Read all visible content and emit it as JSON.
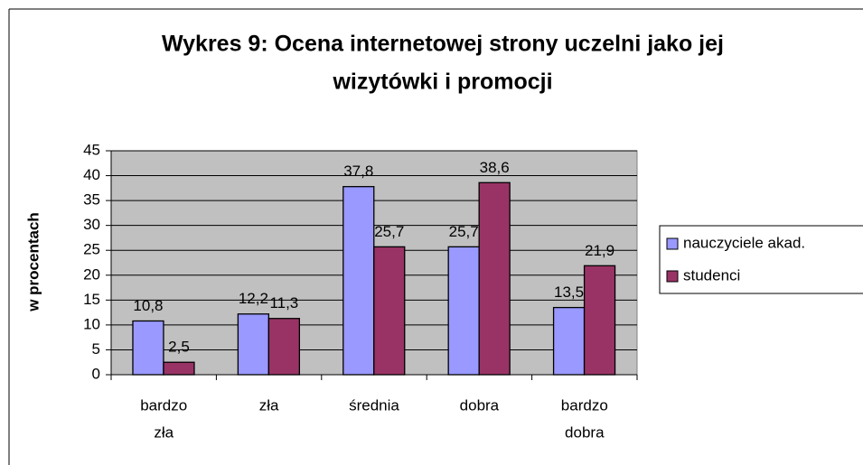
{
  "chart_data": {
    "type": "bar",
    "title": [
      "Wykres 9: Ocena internetowej strony uczelni jako jej",
      "wizytówki i  promocji"
    ],
    "y_label": "w procentach",
    "categories": [
      [
        "bardzo",
        "zła"
      ],
      [
        "zła"
      ],
      [
        "średnia"
      ],
      [
        "dobra"
      ],
      [
        "bardzo",
        "dobra"
      ]
    ],
    "series": [
      {
        "name": "nauczyciele akad.",
        "color": "#9999ff",
        "values": [
          10.8,
          12.2,
          37.8,
          25.7,
          13.5
        ],
        "value_labels": [
          "10,8",
          "12,2",
          "37,8",
          "25,7",
          "13,5"
        ]
      },
      {
        "name": "studenci",
        "color": "#993366",
        "values": [
          2.5,
          11.3,
          25.7,
          38.6,
          21.9
        ],
        "value_labels": [
          "2,5",
          "11,3",
          "25,7",
          "38,6",
          "21,9"
        ]
      }
    ],
    "ylim": [
      0,
      45
    ],
    "yticks": [
      0,
      5,
      10,
      15,
      20,
      25,
      30,
      35,
      40,
      45
    ],
    "grid": true,
    "plot_background": "#c0c0c0",
    "legend": "right"
  }
}
